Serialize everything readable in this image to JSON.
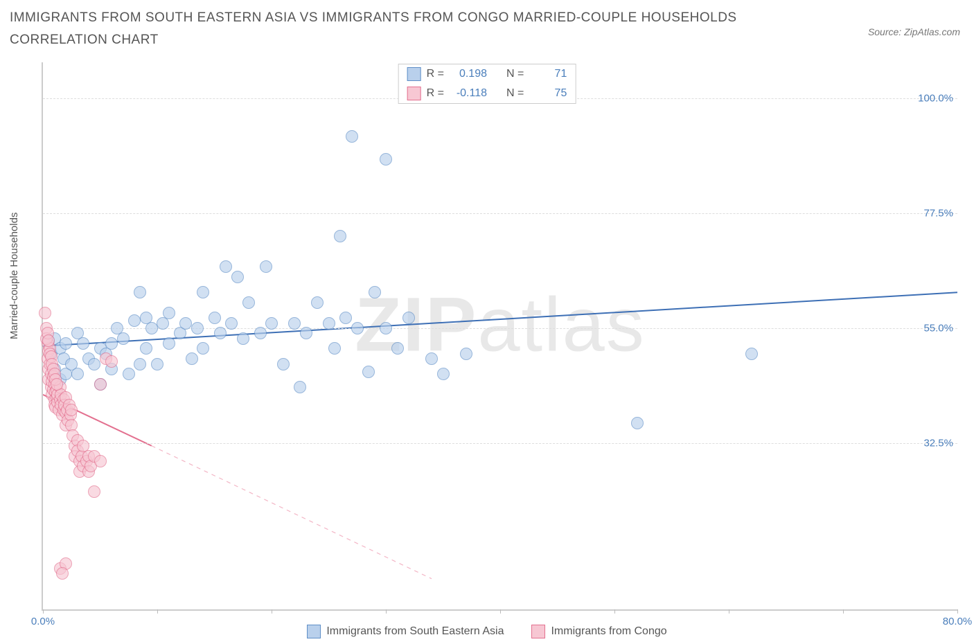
{
  "title": "IMMIGRANTS FROM SOUTH EASTERN ASIA VS IMMIGRANTS FROM CONGO MARRIED-COUPLE HOUSEHOLDS CORRELATION CHART",
  "source": "Source: ZipAtlas.com",
  "watermark_bold": "ZIP",
  "watermark_light": "atlas",
  "y_axis_label": "Married-couple Households",
  "chart": {
    "type": "scatter",
    "background_color": "#ffffff",
    "grid_color": "#dddddd",
    "axis_color": "#cccccc",
    "text_color": "#555555",
    "tick_label_color": "#4a7ebb",
    "xlim": [
      0,
      80
    ],
    "ylim": [
      0,
      107
    ],
    "x_ticks": [
      0,
      10,
      20,
      30,
      40,
      50,
      60,
      70,
      80
    ],
    "x_tick_labels": {
      "0": "0.0%",
      "80": "80.0%"
    },
    "y_ticks": [
      32.5,
      55.0,
      77.5,
      100.0
    ],
    "y_tick_labels": [
      "32.5%",
      "55.0%",
      "77.5%",
      "100.0%"
    ],
    "marker_radius": 9,
    "marker_border": 1,
    "series": [
      {
        "name": "Immigrants from South Eastern Asia",
        "fill": "#b9d0ec",
        "stroke": "#5f8fc7",
        "fill_opacity": 0.65,
        "trend": {
          "x1": 0,
          "y1": 51.5,
          "x2": 80,
          "y2": 62.0,
          "color": "#3d6fb5",
          "width": 2,
          "dash": "none"
        },
        "stats": {
          "R": "0.198",
          "N": "71"
        },
        "points": [
          [
            0.5,
            52.5
          ],
          [
            0.7,
            50.0
          ],
          [
            1.0,
            47.0
          ],
          [
            1.0,
            53.0
          ],
          [
            1.5,
            45.0
          ],
          [
            1.5,
            51.0
          ],
          [
            1.8,
            49.0
          ],
          [
            2.0,
            46.0
          ],
          [
            2.0,
            52.0
          ],
          [
            2.5,
            48.0
          ],
          [
            3.0,
            54.0
          ],
          [
            3.0,
            46.0
          ],
          [
            3.5,
            52.0
          ],
          [
            4.0,
            49.0
          ],
          [
            4.5,
            48.0
          ],
          [
            5.0,
            51.0
          ],
          [
            5.5,
            50.0
          ],
          [
            6.0,
            47.0
          ],
          [
            6.0,
            52.0
          ],
          [
            6.5,
            55.0
          ],
          [
            7.0,
            53.0
          ],
          [
            7.5,
            46.0
          ],
          [
            8.0,
            56.5
          ],
          [
            8.5,
            48.0
          ],
          [
            8.5,
            62.0
          ],
          [
            9.0,
            51.0
          ],
          [
            9.0,
            57.0
          ],
          [
            9.5,
            55.0
          ],
          [
            10.0,
            48.0
          ],
          [
            10.5,
            56.0
          ],
          [
            11.0,
            52.0
          ],
          [
            11.0,
            58.0
          ],
          [
            12.0,
            54.0
          ],
          [
            12.5,
            56.0
          ],
          [
            13.0,
            49.0
          ],
          [
            13.5,
            55.0
          ],
          [
            14.0,
            62.0
          ],
          [
            14.0,
            51.0
          ],
          [
            15.0,
            57.0
          ],
          [
            15.5,
            54.0
          ],
          [
            16.0,
            67.0
          ],
          [
            16.5,
            56.0
          ],
          [
            17.0,
            65.0
          ],
          [
            17.5,
            53.0
          ],
          [
            18.0,
            60.0
          ],
          [
            19.0,
            54.0
          ],
          [
            19.5,
            67.0
          ],
          [
            20.0,
            56.0
          ],
          [
            21.0,
            48.0
          ],
          [
            22.0,
            56.0
          ],
          [
            22.5,
            43.5
          ],
          [
            23.0,
            54.0
          ],
          [
            24.0,
            60.0
          ],
          [
            25.0,
            56.0
          ],
          [
            25.5,
            51.0
          ],
          [
            26.0,
            73.0
          ],
          [
            26.5,
            57.0
          ],
          [
            27.0,
            92.5
          ],
          [
            27.5,
            55.0
          ],
          [
            28.5,
            46.5
          ],
          [
            29.0,
            62.0
          ],
          [
            30.0,
            88.0
          ],
          [
            30.0,
            55.0
          ],
          [
            31.0,
            51.0
          ],
          [
            32.0,
            57.0
          ],
          [
            34.0,
            49.0
          ],
          [
            35.0,
            46.0
          ],
          [
            37.0,
            50.0
          ],
          [
            52.0,
            36.5
          ],
          [
            62.0,
            50.0
          ],
          [
            5.0,
            44.0
          ]
        ]
      },
      {
        "name": "Immigrants from Congo",
        "fill": "#f7c7d3",
        "stroke": "#e3708f",
        "fill_opacity": 0.65,
        "trend_solid": {
          "x1": 0,
          "y1": 42.0,
          "x2": 9.5,
          "y2": 32.0,
          "color": "#e3708f",
          "width": 2
        },
        "trend_dash": {
          "x1": 9.5,
          "y1": 32.0,
          "x2": 34.0,
          "y2": 6.0,
          "color": "#f3b6c6",
          "width": 1.2
        },
        "stats": {
          "R": "-0.118",
          "N": "75"
        },
        "points": [
          [
            0.2,
            58.0
          ],
          [
            0.4,
            52.0
          ],
          [
            0.4,
            49.0
          ],
          [
            0.5,
            50.5
          ],
          [
            0.5,
            47.0
          ],
          [
            0.5,
            45.0
          ],
          [
            0.6,
            51.0
          ],
          [
            0.6,
            48.0
          ],
          [
            0.7,
            46.0
          ],
          [
            0.7,
            43.5
          ],
          [
            0.8,
            44.5
          ],
          [
            0.8,
            42.0
          ],
          [
            0.9,
            45.5
          ],
          [
            0.9,
            43.0
          ],
          [
            1.0,
            41.0
          ],
          [
            1.0,
            44.0
          ],
          [
            1.0,
            40.0
          ],
          [
            1.1,
            42.5
          ],
          [
            1.1,
            39.5
          ],
          [
            1.2,
            41.5
          ],
          [
            1.2,
            43.0
          ],
          [
            1.3,
            40.5
          ],
          [
            1.3,
            42.0
          ],
          [
            1.4,
            39.0
          ],
          [
            1.5,
            41.0
          ],
          [
            1.5,
            43.5
          ],
          [
            1.6,
            40.0
          ],
          [
            1.6,
            42.0
          ],
          [
            1.7,
            38.0
          ],
          [
            1.8,
            41.0
          ],
          [
            1.8,
            39.0
          ],
          [
            1.9,
            40.0
          ],
          [
            2.0,
            38.5
          ],
          [
            2.0,
            41.5
          ],
          [
            2.0,
            36.0
          ],
          [
            2.1,
            39.0
          ],
          [
            2.2,
            37.0
          ],
          [
            2.3,
            40.0
          ],
          [
            2.4,
            38.0
          ],
          [
            2.5,
            36.0
          ],
          [
            2.5,
            39.0
          ],
          [
            2.6,
            34.0
          ],
          [
            2.8,
            32.0
          ],
          [
            2.8,
            30.0
          ],
          [
            3.0,
            33.0
          ],
          [
            3.0,
            31.0
          ],
          [
            3.2,
            29.0
          ],
          [
            3.2,
            27.0
          ],
          [
            3.4,
            30.0
          ],
          [
            3.5,
            28.0
          ],
          [
            3.5,
            32.0
          ],
          [
            3.8,
            29.0
          ],
          [
            4.0,
            30.0
          ],
          [
            4.0,
            27.0
          ],
          [
            4.2,
            28.0
          ],
          [
            4.5,
            23.0
          ],
          [
            4.5,
            30.0
          ],
          [
            5.0,
            29.0
          ],
          [
            5.0,
            44.0
          ],
          [
            5.5,
            49.0
          ],
          [
            6.0,
            48.5
          ],
          [
            1.5,
            8.0
          ],
          [
            2.0,
            9.0
          ],
          [
            1.7,
            7.0
          ],
          [
            0.3,
            55.0
          ],
          [
            0.3,
            53.0
          ],
          [
            0.4,
            54.0
          ],
          [
            0.5,
            52.5
          ],
          [
            0.6,
            50.0
          ],
          [
            0.7,
            49.5
          ],
          [
            0.8,
            48.0
          ],
          [
            0.9,
            47.0
          ],
          [
            1.0,
            46.0
          ],
          [
            1.1,
            45.0
          ],
          [
            1.2,
            44.0
          ]
        ]
      }
    ]
  },
  "legend_labels": {
    "R": "R =",
    "N": "N ="
  }
}
